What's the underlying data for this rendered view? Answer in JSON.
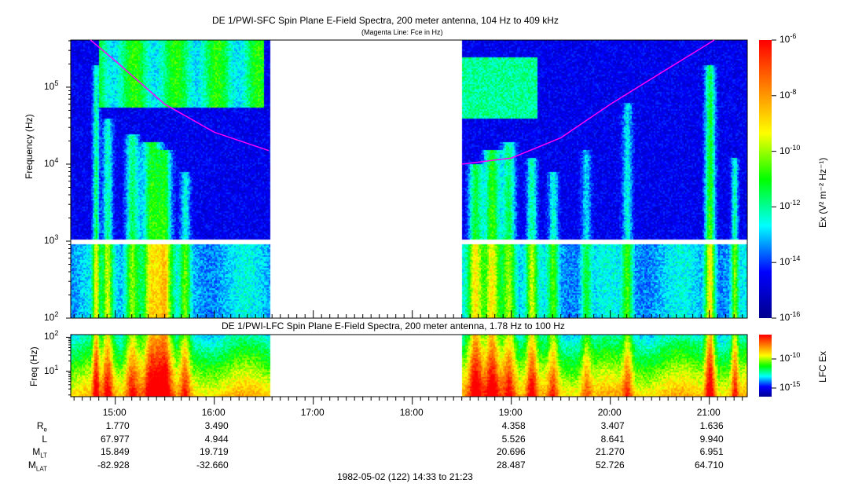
{
  "chart_data": [
    {
      "type": "heatmap",
      "title": "DE 1/PWI-SFC  Spin Plane E-Field Spectra, 200 meter antenna, 104 Hz to 409 kHz",
      "subtitle": "(Magenta Line: Fce in Hz)",
      "ylabel": "Frequency (Hz)",
      "yscale": "log",
      "ylim": [
        100,
        409000
      ],
      "yticks": [
        {
          "base": "10",
          "exp": "2"
        },
        {
          "base": "10",
          "exp": "3"
        },
        {
          "base": "10",
          "exp": "4"
        },
        {
          "base": "10",
          "exp": "5"
        }
      ],
      "xlim": [
        "14:33",
        "21:23"
      ],
      "data_gap": [
        "16:33",
        "18:30"
      ],
      "colorbar": {
        "label": "Ex (V² m⁻² Hz⁻¹)",
        "scale": "log",
        "range": [
          1e-16,
          1e-06
        ],
        "ticks": [
          {
            "base": "10",
            "exp": "-6"
          },
          {
            "base": "10",
            "exp": "-8"
          },
          {
            "base": "10",
            "exp": "-10"
          },
          {
            "base": "10",
            "exp": "-12"
          },
          {
            "base": "10",
            "exp": "-14"
          },
          {
            "base": "10",
            "exp": "-16"
          }
        ],
        "colors": [
          "#00008c",
          "#0000ff",
          "#00ffff",
          "#00ff00",
          "#ffff00",
          "#ff8000",
          "#ff0000"
        ]
      },
      "fce_line": {
        "color": "#ff00ff",
        "points": [
          [
            "14:45",
            409000
          ],
          [
            "15:00",
            220000
          ],
          [
            "15:30",
            60000
          ],
          [
            "16:00",
            26000
          ],
          [
            "16:33",
            15000
          ],
          [
            "18:30",
            10000
          ],
          [
            "19:00",
            12000
          ],
          [
            "19:30",
            22000
          ],
          [
            "20:00",
            60000
          ],
          [
            "20:30",
            150000
          ],
          [
            "21:03",
            409000
          ]
        ]
      }
    },
    {
      "type": "heatmap",
      "title": "DE 1/PWI-LFC  Spin Plane E-Field Spectra, 200 meter antenna, 1.78 Hz to 100 Hz",
      "ylabel": "Freq (Hz)",
      "yscale": "log",
      "ylim": [
        1.78,
        120
      ],
      "yticks": [
        {
          "base": "10",
          "exp": "1"
        },
        {
          "base": "10",
          "exp": "2"
        }
      ],
      "xlim": [
        "14:33",
        "21:23"
      ],
      "data_gap": [
        "16:33",
        "18:30"
      ],
      "colorbar": {
        "label": "LFC Ex",
        "scale": "log",
        "ticks": [
          {
            "base": "10",
            "exp": "-10"
          },
          {
            "base": "10",
            "exp": "-15"
          }
        ]
      }
    }
  ],
  "x_axis": {
    "ticks": [
      "15:00",
      "16:00",
      "17:00",
      "18:00",
      "19:00",
      "20:00",
      "21:00"
    ],
    "caption": "1982-05-02 (122) 14:33 to 21:23"
  },
  "ephemeris": {
    "rows": [
      {
        "label": "R",
        "sub": "e",
        "values": [
          "1.770",
          "3.490",
          "",
          "",
          "4.358",
          "3.407",
          "1.636"
        ]
      },
      {
        "label": "L",
        "sub": "",
        "values": [
          "67.977",
          "4.944",
          "",
          "",
          "5.526",
          "8.641",
          "9.940"
        ]
      },
      {
        "label": "M",
        "sub": "LT",
        "values": [
          "15.849",
          "19.719",
          "",
          "",
          "20.696",
          "21.270",
          "6.951"
        ]
      },
      {
        "label": "M",
        "sub": "LAT",
        "values": [
          "-82.928",
          "-32.660",
          "",
          "",
          "28.487",
          "52.726",
          "64.710"
        ]
      }
    ]
  }
}
